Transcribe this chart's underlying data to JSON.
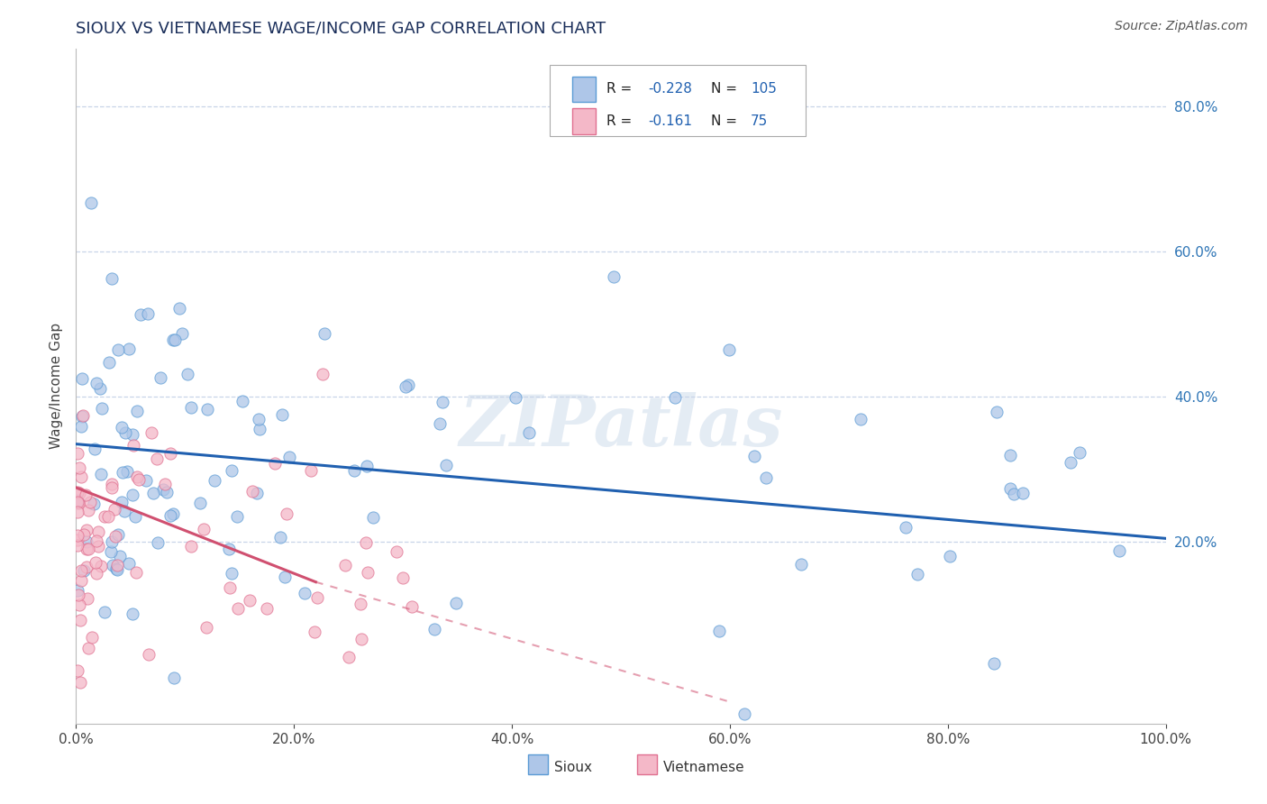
{
  "title": "SIOUX VS VIETNAMESE WAGE/INCOME GAP CORRELATION CHART",
  "source_text": "Source: ZipAtlas.com",
  "ylabel": "Wage/Income Gap",
  "xlim": [
    0.0,
    1.0
  ],
  "ylim": [
    -0.05,
    0.88
  ],
  "yticks": [
    0.2,
    0.4,
    0.6,
    0.8
  ],
  "xticks": [
    0.0,
    0.2,
    0.4,
    0.6,
    0.8,
    1.0
  ],
  "sioux_color": "#aec6e8",
  "sioux_edge_color": "#5b9bd5",
  "vietnamese_color": "#f4b8c8",
  "vietnamese_edge_color": "#e07090",
  "sioux_line_color": "#2060b0",
  "vietnamese_line_color": "#d05070",
  "R_sioux": -0.228,
  "N_sioux": 105,
  "R_vietnamese": -0.161,
  "N_vietnamese": 75,
  "watermark": "ZIPatlas",
  "background_color": "#ffffff",
  "grid_color": "#c8d4e8",
  "title_color": "#1a2e5a",
  "label_color": "#2e75b6",
  "legend_label_color": "#2060b0"
}
